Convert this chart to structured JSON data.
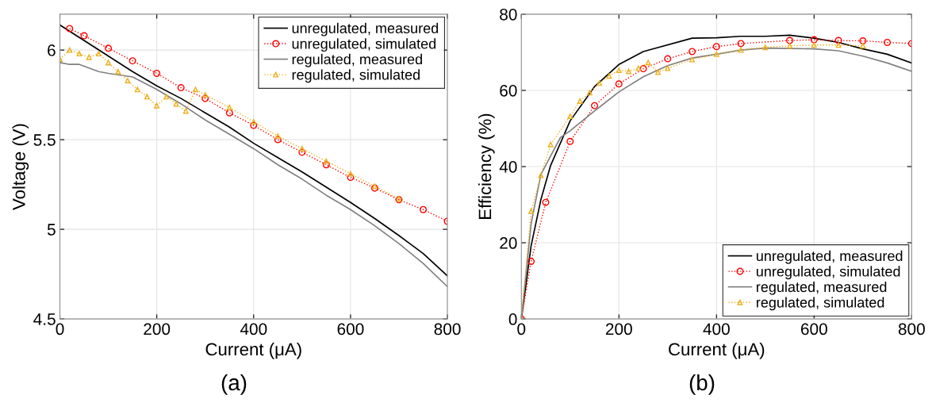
{
  "chart_data": [
    {
      "type": "line",
      "xlabel": "Current (μA)",
      "ylabel": "Voltage (V)",
      "xlim": [
        0,
        800
      ],
      "ylim": [
        4.5,
        6.2
      ],
      "xticks": [
        0,
        200,
        400,
        600,
        800
      ],
      "yticks": [
        4.5,
        5,
        5.5,
        6
      ],
      "grid": true,
      "legend": "top right",
      "annotations": [
        "(a)"
      ],
      "series": [
        {
          "name": "unregulated, measured",
          "color": "#000000",
          "marker": "none",
          "line_style": "solid",
          "x": [
            0,
            150,
            200,
            250,
            300,
            350,
            400,
            450,
            500,
            550,
            600,
            650,
            700,
            750,
            800
          ],
          "values": [
            6.14,
            5.88,
            5.8,
            5.73,
            5.65,
            5.57,
            5.48,
            5.4,
            5.32,
            5.235,
            5.15,
            5.06,
            4.965,
            4.865,
            4.74
          ]
        },
        {
          "name": "unregulated, simulated",
          "color": "#ff0000",
          "marker": "circle",
          "line_style": "dotted",
          "x": [
            20,
            50,
            100,
            150,
            200,
            250,
            300,
            350,
            400,
            450,
            500,
            550,
            600,
            650,
            700,
            750,
            800
          ],
          "values": [
            6.12,
            6.08,
            6.01,
            5.94,
            5.87,
            5.79,
            5.73,
            5.65,
            5.58,
            5.5,
            5.43,
            5.36,
            5.29,
            5.23,
            5.165,
            5.11,
            5.045
          ]
        },
        {
          "name": "regulated, measured",
          "color": "#808080",
          "marker": "none",
          "line_style": "solid",
          "x": [
            0,
            20,
            40,
            60,
            80,
            100,
            150,
            200,
            250,
            300,
            350,
            400,
            450,
            500,
            550,
            600,
            650,
            700,
            750,
            800
          ],
          "values": [
            5.93,
            5.92,
            5.92,
            5.9,
            5.88,
            5.87,
            5.85,
            5.78,
            5.7,
            5.61,
            5.53,
            5.45,
            5.36,
            5.28,
            5.19,
            5.11,
            5.02,
            4.92,
            4.81,
            4.68
          ]
        },
        {
          "name": "regulated, simulated",
          "color": "#edb120",
          "marker": "triangle",
          "line_style": "dotted",
          "x": [
            0,
            20,
            40,
            60,
            80,
            100,
            120,
            140,
            160,
            180,
            200,
            220,
            240,
            260,
            280,
            300,
            350,
            400,
            450,
            500,
            550,
            600,
            650,
            700
          ],
          "values": [
            5.95,
            6.0,
            5.98,
            5.96,
            5.98,
            5.93,
            5.88,
            5.83,
            5.78,
            5.74,
            5.69,
            5.74,
            5.7,
            5.66,
            5.78,
            5.75,
            5.68,
            5.6,
            5.52,
            5.45,
            5.38,
            5.31,
            5.24,
            5.17
          ]
        }
      ]
    },
    {
      "type": "line",
      "xlabel": "Current (μA)",
      "ylabel": "Efficiency (%)",
      "xlim": [
        0,
        800
      ],
      "ylim": [
        0,
        80
      ],
      "xticks": [
        0,
        200,
        400,
        600,
        800
      ],
      "yticks": [
        0,
        20,
        40,
        60,
        80
      ],
      "grid": true,
      "legend": "bottom right",
      "annotations": [
        "(b)"
      ],
      "series": [
        {
          "name": "unregulated, measured",
          "color": "#000000",
          "marker": "none",
          "line_style": "solid",
          "x": [
            0,
            20,
            40,
            60,
            100,
            150,
            200,
            250,
            350,
            400,
            450,
            500,
            550,
            600,
            650,
            700,
            750,
            800
          ],
          "values": [
            0,
            19.2,
            31.3,
            40.3,
            52.0,
            61.0,
            66.8,
            70.2,
            73.7,
            73.8,
            74.2,
            74.2,
            74.5,
            73.7,
            72.6,
            70.9,
            69.5,
            67.2
          ]
        },
        {
          "name": "unregulated, simulated",
          "color": "#ff0000",
          "marker": "circle",
          "line_style": "dotted",
          "x": [
            0,
            20,
            50,
            100,
            150,
            200,
            250,
            300,
            350,
            400,
            450,
            550,
            600,
            650,
            700,
            750,
            800
          ],
          "values": [
            0,
            15.1,
            30.6,
            46.6,
            56.0,
            61.7,
            65.7,
            68.3,
            70.2,
            71.5,
            72.3,
            73.1,
            73.3,
            73.1,
            73.0,
            72.6,
            72.3
          ]
        },
        {
          "name": "regulated, measured",
          "color": "#808080",
          "marker": "none",
          "line_style": "solid",
          "x": [
            0,
            20,
            40,
            60,
            80,
            100,
            150,
            200,
            250,
            300,
            350,
            400,
            450,
            500,
            550,
            600,
            650,
            700,
            750,
            800
          ],
          "values": [
            0,
            25,
            37.9,
            42.8,
            47.6,
            49.4,
            54.6,
            59.6,
            63.6,
            66.5,
            68.5,
            69.5,
            70.6,
            71.1,
            71.0,
            70.9,
            70.4,
            69.0,
            67.2,
            65.0
          ]
        },
        {
          "name": "regulated, simulated",
          "color": "#edb120",
          "marker": "triangle",
          "line_style": "dotted",
          "x": [
            0,
            20,
            40,
            60,
            100,
            120,
            140,
            160,
            180,
            200,
            220,
            240,
            260,
            280,
            300,
            350,
            400,
            450,
            500,
            550,
            600,
            650,
            700
          ],
          "values": [
            0,
            28.3,
            37.7,
            45.8,
            53.2,
            57.2,
            59.4,
            61.9,
            63.8,
            65.3,
            65.0,
            65.8,
            67.3,
            64.8,
            65.8,
            68.1,
            69.5,
            70.6,
            71.3,
            71.7,
            71.9,
            71.9,
            71.7
          ]
        }
      ]
    }
  ]
}
